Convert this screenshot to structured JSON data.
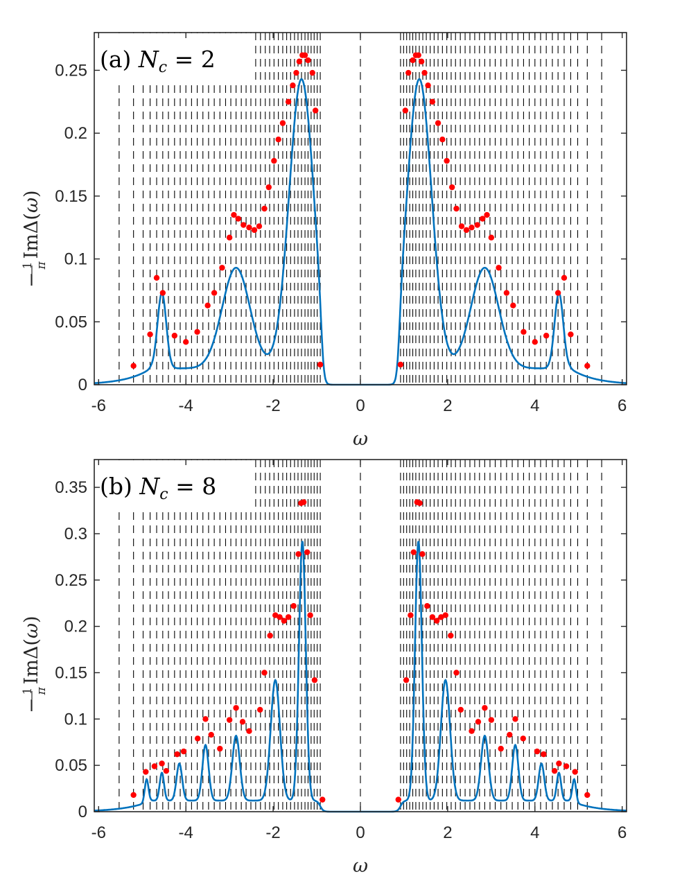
{
  "chart_data": [
    {
      "type": "line",
      "panel_label": "(a)",
      "title_var": "N",
      "title_sub": "c",
      "title_rhs": " = 2",
      "xlabel": "ω",
      "ylabel": "−(1/π) Im Δ(ω)",
      "ylabel_prefix": "−",
      "ylabel_num": "1",
      "ylabel_den": "π",
      "ylabel_fn": "ImΔ(",
      "ylabel_var": "ω",
      "ylabel_close": ")",
      "xlim": [
        -6.1,
        6.1
      ],
      "ylim": [
        0,
        0.28
      ],
      "xticks": [
        -6,
        -4,
        -2,
        0,
        2,
        4,
        6
      ],
      "xtick_labels": [
        "-6",
        "-4",
        "-2",
        "0",
        "2",
        "4",
        "6"
      ],
      "yticks": [
        0,
        0.05,
        0.1,
        0.15,
        0.2,
        0.25
      ],
      "ytick_labels": [
        "0",
        "0.05",
        "0.1",
        "0.15",
        "0.2",
        "0.25"
      ],
      "curve_peaks": [
        [
          -4.55,
          0.06,
          0.14
        ],
        [
          -2.85,
          0.08,
          0.45
        ],
        [
          -1.35,
          0.23,
          0.4
        ],
        [
          1.35,
          0.23,
          0.4
        ],
        [
          2.85,
          0.08,
          0.45
        ],
        [
          4.55,
          0.06,
          0.14
        ]
      ],
      "curve_bg": 0.013,
      "gap_half_width": 0.88,
      "dashed_lines_x": [
        -5.53,
        -5.2,
        -4.98,
        -4.82,
        -4.67,
        -4.53,
        -4.4,
        -4.26,
        -4.13,
        -4.0,
        -3.87,
        -3.74,
        -3.61,
        -3.48,
        -3.35,
        -3.22,
        -3.09,
        -2.97,
        -2.85,
        -2.73,
        -2.62,
        -2.51,
        -2.4,
        -2.29,
        -2.18,
        -2.08,
        -1.98,
        -1.88,
        -1.78,
        -1.69,
        -1.6,
        -1.51,
        -1.43,
        -1.35,
        -1.27,
        -1.2,
        -1.13,
        -1.06,
        -0.99,
        -0.92,
        0.0,
        0.92,
        0.99,
        1.06,
        1.13,
        1.2,
        1.27,
        1.35,
        1.43,
        1.51,
        1.6,
        1.69,
        1.78,
        1.88,
        1.98,
        2.08,
        2.18,
        2.29,
        2.4,
        2.51,
        2.62,
        2.73,
        2.85,
        2.97,
        3.09,
        3.22,
        3.35,
        3.48,
        3.61,
        3.74,
        3.87,
        4.0,
        4.13,
        4.26,
        4.4,
        4.53,
        4.67,
        4.82,
        4.98,
        5.2,
        5.53
      ],
      "points": [
        {
          "x": -5.2,
          "y": 0.015
        },
        {
          "x": -4.82,
          "y": 0.04
        },
        {
          "x": -4.67,
          "y": 0.085
        },
        {
          "x": -4.53,
          "y": 0.073
        },
        {
          "x": -4.26,
          "y": 0.039
        },
        {
          "x": -4.0,
          "y": 0.034
        },
        {
          "x": -3.74,
          "y": 0.042
        },
        {
          "x": -3.5,
          "y": 0.063
        },
        {
          "x": -3.35,
          "y": 0.073
        },
        {
          "x": -3.17,
          "y": 0.093
        },
        {
          "x": -3.0,
          "y": 0.117
        },
        {
          "x": -2.9,
          "y": 0.135
        },
        {
          "x": -2.8,
          "y": 0.132
        },
        {
          "x": -2.68,
          "y": 0.127
        },
        {
          "x": -2.55,
          "y": 0.125
        },
        {
          "x": -2.43,
          "y": 0.123
        },
        {
          "x": -2.32,
          "y": 0.126
        },
        {
          "x": -2.2,
          "y": 0.14
        },
        {
          "x": -2.1,
          "y": 0.157
        },
        {
          "x": -1.98,
          "y": 0.178
        },
        {
          "x": -1.88,
          "y": 0.195
        },
        {
          "x": -1.78,
          "y": 0.208
        },
        {
          "x": -1.65,
          "y": 0.225
        },
        {
          "x": -1.55,
          "y": 0.238
        },
        {
          "x": -1.47,
          "y": 0.248
        },
        {
          "x": -1.4,
          "y": 0.257
        },
        {
          "x": -1.33,
          "y": 0.262
        },
        {
          "x": -1.27,
          "y": 0.262
        },
        {
          "x": -1.2,
          "y": 0.258
        },
        {
          "x": -1.1,
          "y": 0.248
        },
        {
          "x": -1.03,
          "y": 0.218
        },
        {
          "x": -0.92,
          "y": 0.016
        },
        {
          "x": 0.92,
          "y": 0.016
        },
        {
          "x": 1.03,
          "y": 0.218
        },
        {
          "x": 1.1,
          "y": 0.248
        },
        {
          "x": 1.2,
          "y": 0.258
        },
        {
          "x": 1.27,
          "y": 0.262
        },
        {
          "x": 1.33,
          "y": 0.262
        },
        {
          "x": 1.4,
          "y": 0.257
        },
        {
          "x": 1.47,
          "y": 0.248
        },
        {
          "x": 1.55,
          "y": 0.238
        },
        {
          "x": 1.65,
          "y": 0.225
        },
        {
          "x": 1.78,
          "y": 0.208
        },
        {
          "x": 1.88,
          "y": 0.195
        },
        {
          "x": 1.98,
          "y": 0.178
        },
        {
          "x": 2.1,
          "y": 0.157
        },
        {
          "x": 2.2,
          "y": 0.14
        },
        {
          "x": 2.32,
          "y": 0.126
        },
        {
          "x": 2.43,
          "y": 0.123
        },
        {
          "x": 2.55,
          "y": 0.125
        },
        {
          "x": 2.68,
          "y": 0.127
        },
        {
          "x": 2.8,
          "y": 0.132
        },
        {
          "x": 2.9,
          "y": 0.135
        },
        {
          "x": 3.0,
          "y": 0.117
        },
        {
          "x": 3.17,
          "y": 0.093
        },
        {
          "x": 3.35,
          "y": 0.073
        },
        {
          "x": 3.5,
          "y": 0.063
        },
        {
          "x": 3.74,
          "y": 0.042
        },
        {
          "x": 4.0,
          "y": 0.034
        },
        {
          "x": 4.26,
          "y": 0.039
        },
        {
          "x": 4.53,
          "y": 0.073
        },
        {
          "x": 4.67,
          "y": 0.085
        },
        {
          "x": 4.82,
          "y": 0.04
        },
        {
          "x": 5.2,
          "y": 0.015
        }
      ],
      "line_color": "#0072BD",
      "point_color": "#FF0000"
    },
    {
      "type": "line",
      "panel_label": "(b)",
      "title_var": "N",
      "title_sub": "c",
      "title_rhs": " = 8",
      "xlabel": "ω",
      "ylabel": "−(1/π) Im Δ(ω)",
      "ylabel_prefix": "−",
      "ylabel_num": "1",
      "ylabel_den": "π",
      "ylabel_fn": "ImΔ(",
      "ylabel_var": "ω",
      "ylabel_close": ")",
      "xlim": [
        -6.1,
        6.1
      ],
      "ylim": [
        0,
        0.38
      ],
      "xticks": [
        -6,
        -4,
        -2,
        0,
        2,
        4,
        6
      ],
      "xtick_labels": [
        "-6",
        "-4",
        "-2",
        "0",
        "2",
        "4",
        "6"
      ],
      "yticks": [
        0,
        0.05,
        0.1,
        0.15,
        0.2,
        0.25,
        0.3,
        0.35
      ],
      "ytick_labels": [
        "0",
        "0.05",
        "0.1",
        "0.15",
        "0.2",
        "0.25",
        "0.3",
        "0.35"
      ],
      "curve_peaks": [
        [
          -4.9,
          0.025,
          0.06
        ],
        [
          -4.55,
          0.03,
          0.07
        ],
        [
          -4.15,
          0.04,
          0.09
        ],
        [
          -3.55,
          0.06,
          0.1
        ],
        [
          -2.85,
          0.07,
          0.12
        ],
        [
          -1.95,
          0.13,
          0.15
        ],
        [
          -1.33,
          0.28,
          0.11
        ],
        [
          1.33,
          0.28,
          0.11
        ],
        [
          1.95,
          0.13,
          0.15
        ],
        [
          2.85,
          0.07,
          0.12
        ],
        [
          3.55,
          0.06,
          0.1
        ],
        [
          4.15,
          0.04,
          0.09
        ],
        [
          4.55,
          0.03,
          0.07
        ],
        [
          4.9,
          0.025,
          0.06
        ]
      ],
      "curve_bg": 0.012,
      "gap_half_width": 0.92,
      "dashed_lines_x": [
        -5.53,
        -5.2,
        -4.98,
        -4.82,
        -4.67,
        -4.53,
        -4.4,
        -4.26,
        -4.13,
        -4.0,
        -3.87,
        -3.74,
        -3.61,
        -3.48,
        -3.35,
        -3.22,
        -3.09,
        -2.97,
        -2.85,
        -2.73,
        -2.62,
        -2.51,
        -2.4,
        -2.29,
        -2.18,
        -2.08,
        -1.98,
        -1.88,
        -1.78,
        -1.69,
        -1.6,
        -1.51,
        -1.43,
        -1.35,
        -1.27,
        -1.2,
        -1.13,
        -1.06,
        -0.99,
        -0.92,
        0.0,
        0.92,
        0.99,
        1.06,
        1.13,
        1.2,
        1.27,
        1.35,
        1.43,
        1.51,
        1.6,
        1.69,
        1.78,
        1.88,
        1.98,
        2.08,
        2.18,
        2.29,
        2.4,
        2.51,
        2.62,
        2.73,
        2.85,
        2.97,
        3.09,
        3.22,
        3.35,
        3.48,
        3.61,
        3.74,
        3.87,
        4.0,
        4.13,
        4.26,
        4.4,
        4.53,
        4.67,
        4.82,
        4.98,
        5.2,
        5.53
      ],
      "points": [
        {
          "x": -5.2,
          "y": 0.018
        },
        {
          "x": -4.92,
          "y": 0.043
        },
        {
          "x": -4.72,
          "y": 0.049
        },
        {
          "x": -4.55,
          "y": 0.052
        },
        {
          "x": -4.45,
          "y": 0.044
        },
        {
          "x": -4.2,
          "y": 0.062
        },
        {
          "x": -4.05,
          "y": 0.065
        },
        {
          "x": -3.73,
          "y": 0.079
        },
        {
          "x": -3.55,
          "y": 0.1
        },
        {
          "x": -3.42,
          "y": 0.083
        },
        {
          "x": -3.22,
          "y": 0.068
        },
        {
          "x": -3.0,
          "y": 0.099
        },
        {
          "x": -2.85,
          "y": 0.112
        },
        {
          "x": -2.7,
          "y": 0.097
        },
        {
          "x": -2.55,
          "y": 0.087
        },
        {
          "x": -2.3,
          "y": 0.11
        },
        {
          "x": -2.2,
          "y": 0.15
        },
        {
          "x": -2.07,
          "y": 0.19
        },
        {
          "x": -1.95,
          "y": 0.212
        },
        {
          "x": -1.85,
          "y": 0.21
        },
        {
          "x": -1.75,
          "y": 0.206
        },
        {
          "x": -1.65,
          "y": 0.21
        },
        {
          "x": -1.53,
          "y": 0.222
        },
        {
          "x": -1.42,
          "y": 0.278
        },
        {
          "x": -1.36,
          "y": 0.333
        },
        {
          "x": -1.3,
          "y": 0.334
        },
        {
          "x": -1.22,
          "y": 0.28
        },
        {
          "x": -1.15,
          "y": 0.212
        },
        {
          "x": -1.05,
          "y": 0.142
        },
        {
          "x": -0.87,
          "y": 0.013
        },
        {
          "x": 0.87,
          "y": 0.013
        },
        {
          "x": 1.05,
          "y": 0.142
        },
        {
          "x": 1.15,
          "y": 0.212
        },
        {
          "x": 1.22,
          "y": 0.28
        },
        {
          "x": 1.3,
          "y": 0.334
        },
        {
          "x": 1.36,
          "y": 0.333
        },
        {
          "x": 1.42,
          "y": 0.278
        },
        {
          "x": 1.53,
          "y": 0.222
        },
        {
          "x": 1.65,
          "y": 0.21
        },
        {
          "x": 1.75,
          "y": 0.206
        },
        {
          "x": 1.85,
          "y": 0.21
        },
        {
          "x": 1.95,
          "y": 0.212
        },
        {
          "x": 2.07,
          "y": 0.19
        },
        {
          "x": 2.2,
          "y": 0.15
        },
        {
          "x": 2.3,
          "y": 0.11
        },
        {
          "x": 2.55,
          "y": 0.087
        },
        {
          "x": 2.7,
          "y": 0.097
        },
        {
          "x": 2.85,
          "y": 0.112
        },
        {
          "x": 3.0,
          "y": 0.099
        },
        {
          "x": 3.22,
          "y": 0.068
        },
        {
          "x": 3.42,
          "y": 0.083
        },
        {
          "x": 3.55,
          "y": 0.1
        },
        {
          "x": 3.73,
          "y": 0.079
        },
        {
          "x": 4.05,
          "y": 0.065
        },
        {
          "x": 4.2,
          "y": 0.062
        },
        {
          "x": 4.45,
          "y": 0.044
        },
        {
          "x": 4.55,
          "y": 0.052
        },
        {
          "x": 4.72,
          "y": 0.049
        },
        {
          "x": 4.92,
          "y": 0.043
        },
        {
          "x": 5.2,
          "y": 0.018
        }
      ],
      "line_color": "#0072BD",
      "point_color": "#FF0000"
    }
  ]
}
